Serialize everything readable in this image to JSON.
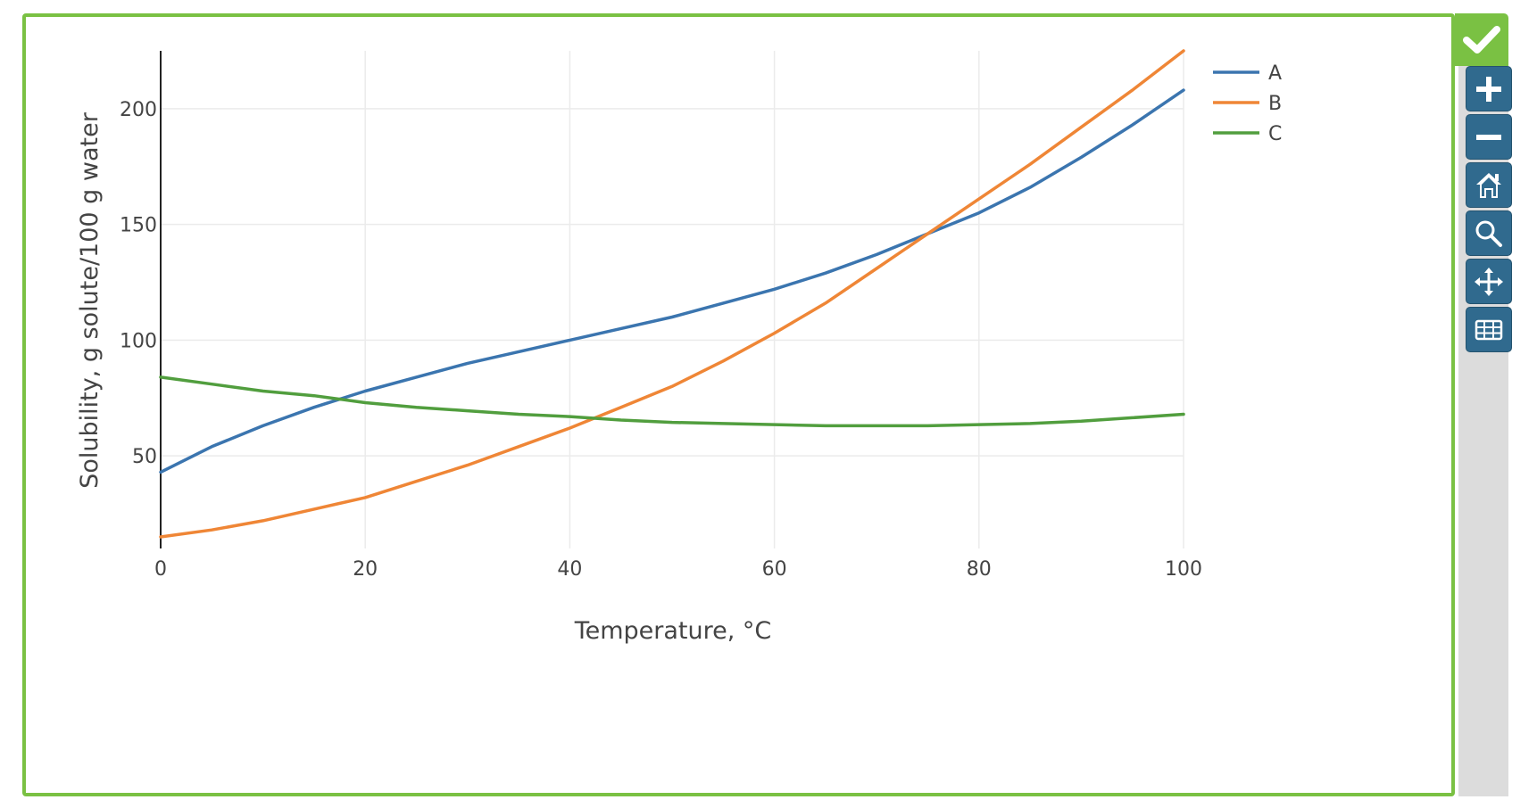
{
  "chart_data": {
    "type": "line",
    "title": "",
    "xlabel": "Temperature, °C",
    "ylabel": "Solubility, g solute/100 g water",
    "xlim": [
      0,
      100
    ],
    "ylim": [
      10,
      225
    ],
    "x_ticks": [
      "0",
      "20",
      "40",
      "60",
      "80",
      "100"
    ],
    "x_tick_values": [
      0,
      20,
      40,
      60,
      80,
      100
    ],
    "y_ticks": [
      "50",
      "100",
      "150",
      "200"
    ],
    "y_tick_values": [
      50,
      100,
      150,
      200
    ],
    "grid": true,
    "legend_position": "top-right",
    "series": [
      {
        "name": "A",
        "color": "#3b75af",
        "x": [
          0,
          5,
          10,
          15,
          20,
          25,
          30,
          35,
          40,
          45,
          50,
          55,
          60,
          65,
          70,
          75,
          80,
          85,
          90,
          95,
          100
        ],
        "y": [
          43,
          54,
          63,
          71,
          78,
          84,
          90,
          95,
          100,
          105,
          110,
          116,
          122,
          129,
          137,
          146,
          155,
          166,
          179,
          193,
          208
        ]
      },
      {
        "name": "B",
        "color": "#ef8636",
        "x": [
          0,
          5,
          10,
          15,
          20,
          25,
          30,
          35,
          40,
          45,
          50,
          55,
          60,
          65,
          70,
          75,
          80,
          85,
          90,
          95,
          100
        ],
        "y": [
          15,
          18,
          22,
          27,
          32,
          39,
          46,
          54,
          62,
          71,
          80,
          91,
          103,
          116,
          131,
          146,
          161,
          176,
          192,
          208,
          225
        ]
      },
      {
        "name": "C",
        "color": "#519e3e",
        "x": [
          0,
          5,
          10,
          15,
          20,
          25,
          30,
          35,
          40,
          45,
          50,
          55,
          60,
          65,
          70,
          75,
          80,
          85,
          90,
          95,
          100
        ],
        "y": [
          84,
          81,
          78,
          76,
          73,
          71,
          69.5,
          68,
          67,
          65.5,
          64.5,
          64,
          63.5,
          63,
          63,
          63,
          63.5,
          64,
          65,
          66.5,
          68
        ]
      }
    ]
  },
  "toolbar": {
    "check_icon": "checkmark-icon",
    "tools": [
      {
        "name": "zoom-in",
        "icon": "plus-icon"
      },
      {
        "name": "zoom-out",
        "icon": "minus-icon"
      },
      {
        "name": "reset-home",
        "icon": "home-icon"
      },
      {
        "name": "zoom-box",
        "icon": "magnifier-icon"
      },
      {
        "name": "pan",
        "icon": "move-arrows-icon"
      },
      {
        "name": "data-table",
        "icon": "table-icon"
      }
    ]
  },
  "colors": {
    "frame_border": "#7ac143",
    "toolbar_bg": "#dcdcdc",
    "button_bg": "#306a8e"
  }
}
